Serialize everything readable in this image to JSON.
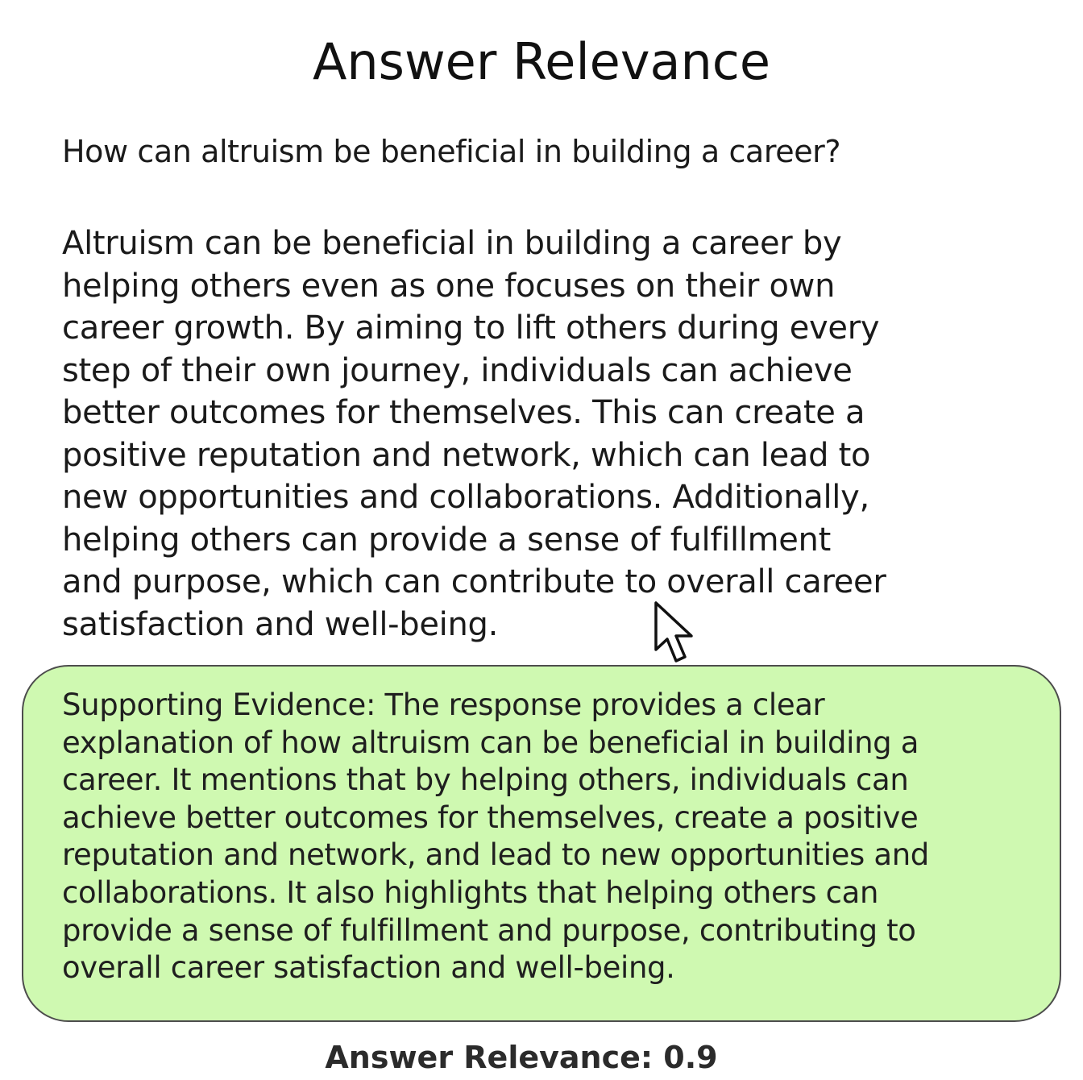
{
  "title": "Answer Relevance",
  "question": "How can altruism be beneficial in building a career?",
  "answer": {
    "lines": [
      "Altruism can be beneficial in building a career by",
      "helping others even as one focuses on their own",
      "career growth. By aiming to lift others during every",
      "step of their own journey, individuals can achieve",
      "better outcomes for themselves. This can create a",
      "positive reputation and network, which can lead to",
      "new opportunities and collaborations. Additionally,",
      "helping others can provide a sense of fulfillment",
      "and purpose, which can contribute to overall career",
      "satisfaction and well-being."
    ]
  },
  "evidence": {
    "lines": [
      "Supporting Evidence: The response provides a clear",
      "explanation of how altruism can be beneficial in building a",
      "career. It mentions that by helping others, individuals can",
      "achieve better outcomes for themselves, create a positive",
      "reputation and network, and lead to new opportunities and",
      "collaborations. It also highlights that helping others can",
      "provide a sense of fulfillment and purpose, contributing to",
      "overall career satisfaction and well-being."
    ],
    "background_color": "#cff9b1"
  },
  "score": {
    "text": "Answer Relevance: 0.9",
    "value": 0.9
  },
  "cursor": {
    "icon": "mouse-pointer-icon"
  }
}
